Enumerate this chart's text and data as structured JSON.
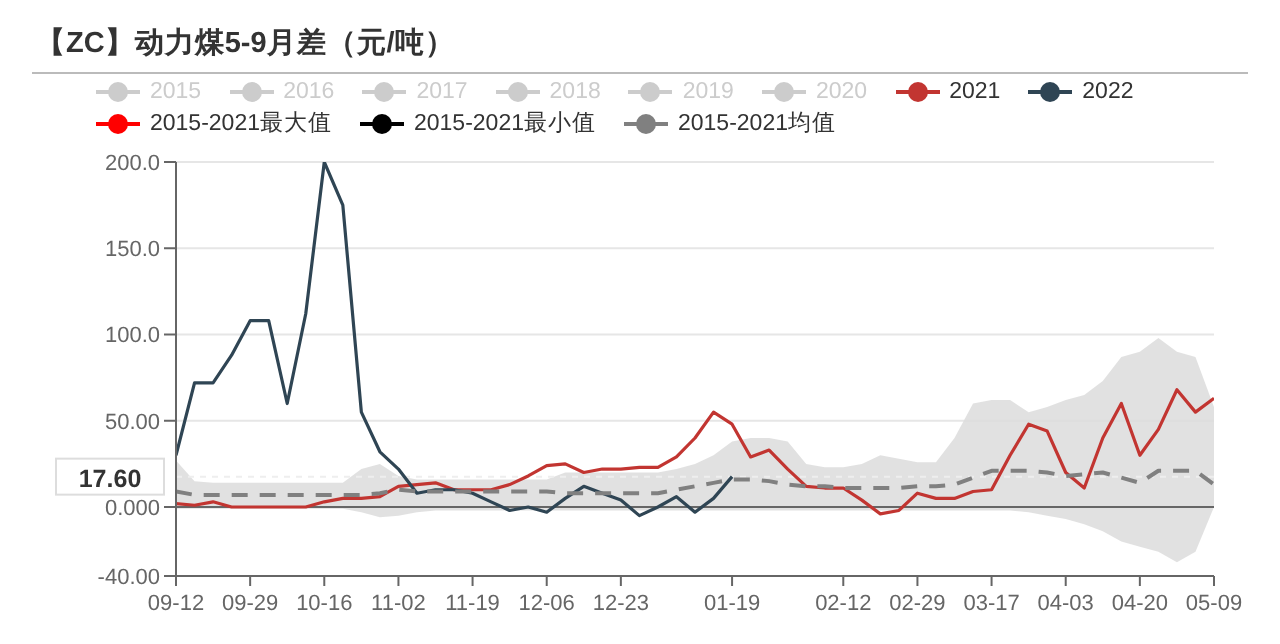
{
  "chart_data": {
    "type": "line",
    "title": "【ZC】动力煤5-9月差（元/吨）",
    "categories": [
      "09-12",
      null,
      null,
      null,
      "09-29",
      null,
      null,
      null,
      "10-16",
      null,
      null,
      null,
      "11-02",
      null,
      null,
      null,
      "11-19",
      null,
      null,
      null,
      "12-06",
      null,
      null,
      null,
      "12-23",
      null,
      null,
      null,
      null,
      null,
      "01-19",
      null,
      null,
      null,
      null,
      null,
      "02-12",
      null,
      null,
      null,
      "02-29",
      null,
      null,
      null,
      "03-17",
      null,
      null,
      null,
      "04-03",
      null,
      null,
      null,
      "04-20",
      null,
      null,
      null,
      "05-09"
    ],
    "series": [
      {
        "name": "2015",
        "color": "#cccccc",
        "values": [
          null,
          null,
          null,
          null,
          null,
          null,
          null,
          null,
          null,
          null,
          null,
          null,
          null,
          null,
          null,
          null,
          null,
          null,
          null,
          null,
          null,
          null,
          null,
          null,
          null,
          null,
          null,
          null,
          null,
          null,
          null,
          null,
          null,
          null,
          null,
          null,
          null,
          null,
          null,
          null,
          null,
          null,
          null,
          null,
          null,
          null,
          null,
          null,
          null,
          null,
          null,
          null,
          null,
          null,
          null,
          null,
          null
        ]
      },
      {
        "name": "2016",
        "color": "#cccccc",
        "values": [
          null,
          null,
          null,
          null,
          null,
          null,
          null,
          null,
          null,
          null,
          null,
          null,
          null,
          null,
          null,
          null,
          null,
          null,
          null,
          null,
          null,
          null,
          null,
          null,
          null,
          null,
          null,
          null,
          null,
          null,
          null,
          null,
          null,
          null,
          null,
          null,
          null,
          null,
          null,
          null,
          null,
          null,
          null,
          null,
          null,
          null,
          null,
          null,
          null,
          null,
          null,
          null,
          null,
          null,
          null,
          null,
          null
        ]
      },
      {
        "name": "2017",
        "color": "#cccccc",
        "values": [
          null,
          null,
          null,
          null,
          null,
          null,
          null,
          null,
          null,
          null,
          null,
          null,
          null,
          null,
          null,
          null,
          null,
          null,
          null,
          null,
          null,
          null,
          null,
          null,
          null,
          null,
          null,
          null,
          null,
          null,
          null,
          null,
          null,
          null,
          null,
          null,
          null,
          null,
          null,
          null,
          null,
          null,
          null,
          null,
          null,
          null,
          null,
          null,
          null,
          null,
          null,
          null,
          null,
          null,
          null,
          null,
          null
        ]
      },
      {
        "name": "2018",
        "color": "#cccccc",
        "values": [
          null,
          null,
          null,
          null,
          null,
          null,
          null,
          null,
          null,
          null,
          null,
          null,
          null,
          null,
          null,
          null,
          null,
          null,
          null,
          null,
          null,
          null,
          null,
          null,
          null,
          null,
          null,
          null,
          null,
          null,
          null,
          null,
          null,
          null,
          null,
          null,
          null,
          null,
          null,
          null,
          null,
          null,
          null,
          null,
          null,
          null,
          null,
          null,
          null,
          null,
          null,
          null,
          null,
          null,
          null,
          null,
          null
        ]
      },
      {
        "name": "2019",
        "color": "#cccccc",
        "values": [
          null,
          null,
          null,
          null,
          null,
          null,
          null,
          null,
          null,
          null,
          null,
          null,
          null,
          null,
          null,
          null,
          null,
          null,
          null,
          null,
          null,
          null,
          null,
          null,
          null,
          null,
          null,
          null,
          null,
          null,
          null,
          null,
          null,
          null,
          null,
          null,
          null,
          null,
          null,
          null,
          null,
          null,
          null,
          null,
          null,
          null,
          null,
          null,
          null,
          null,
          null,
          null,
          null,
          null,
          null,
          null,
          null
        ]
      },
      {
        "name": "2020",
        "color": "#cccccc",
        "values": [
          null,
          null,
          null,
          null,
          null,
          null,
          null,
          null,
          null,
          null,
          null,
          null,
          null,
          null,
          null,
          null,
          null,
          null,
          null,
          null,
          null,
          null,
          null,
          null,
          null,
          null,
          null,
          null,
          null,
          null,
          null,
          null,
          null,
          null,
          null,
          null,
          null,
          null,
          null,
          null,
          null,
          null,
          null,
          null,
          null,
          null,
          null,
          null,
          null,
          null,
          null,
          null,
          null,
          null,
          null,
          null,
          null
        ]
      },
      {
        "name": "2021",
        "color": "#c23531",
        "values": [
          2,
          1,
          3,
          0,
          0,
          0,
          0,
          0,
          3,
          5,
          5,
          6,
          12,
          13,
          14,
          10,
          10,
          10,
          13,
          18,
          24,
          25,
          20,
          22,
          22,
          23,
          23,
          29,
          40,
          55,
          48,
          29,
          33,
          22,
          12,
          11,
          11,
          4,
          -4,
          -2,
          8,
          5,
          5,
          9,
          10,
          30,
          48,
          44,
          20,
          11,
          40,
          60,
          30,
          45,
          68,
          55,
          63
        ]
      },
      {
        "name": "2022",
        "color": "#2f4554",
        "values": [
          30,
          72,
          72,
          88,
          108,
          108,
          60,
          112,
          200,
          175,
          55,
          32,
          22,
          8,
          10,
          10,
          8,
          3,
          -2,
          0,
          -3,
          5,
          12,
          8,
          4,
          -5,
          0,
          6,
          -3,
          5,
          17.6,
          null,
          null,
          null,
          null,
          null,
          null,
          null,
          null,
          null,
          null,
          null,
          null,
          null,
          null,
          null,
          null,
          null,
          null,
          null,
          null,
          null,
          null,
          null,
          null,
          null,
          null
        ]
      },
      {
        "name": "2015-2021最大值",
        "color": "#ff0000",
        "values": [
          null,
          null,
          null,
          null,
          null,
          null,
          null,
          null,
          null,
          null,
          null,
          null,
          null,
          null,
          null,
          null,
          null,
          null,
          null,
          null,
          null,
          null,
          null,
          null,
          null,
          null,
          null,
          null,
          null,
          null,
          null,
          null,
          null,
          null,
          null,
          null,
          null,
          null,
          null,
          null,
          null,
          null,
          null,
          null,
          null,
          null,
          null,
          null,
          null,
          null,
          null,
          null,
          null,
          null,
          null,
          null,
          null
        ]
      },
      {
        "name": "2015-2021最小值",
        "color": "#000000",
        "values": [
          null,
          null,
          null,
          null,
          null,
          null,
          null,
          null,
          null,
          null,
          null,
          null,
          null,
          null,
          null,
          null,
          null,
          null,
          null,
          null,
          null,
          null,
          null,
          null,
          null,
          null,
          null,
          null,
          null,
          null,
          null,
          null,
          null,
          null,
          null,
          null,
          null,
          null,
          null,
          null,
          null,
          null,
          null,
          null,
          null,
          null,
          null,
          null,
          null,
          null,
          null,
          null,
          null,
          null,
          null,
          null,
          null
        ]
      },
      {
        "name": "2015-2021均值",
        "color": "#808080",
        "line_style": "dashed",
        "upper": [
          27,
          15,
          14,
          14,
          14,
          14,
          14,
          14,
          14,
          14,
          22,
          25,
          18,
          16,
          16,
          16,
          16,
          16,
          16,
          16,
          16,
          20,
          20,
          20,
          20,
          20,
          20,
          22,
          25,
          30,
          38,
          40,
          40,
          38,
          25,
          23,
          23,
          25,
          30,
          28,
          26,
          26,
          40,
          60,
          62,
          62,
          55,
          58,
          62,
          65,
          73,
          87,
          90,
          98,
          90,
          87,
          58
        ],
        "lower": [
          -1,
          -1,
          -1,
          -1,
          -1,
          -1,
          -1,
          -1,
          -1,
          -1,
          -3,
          -6,
          -5,
          -3,
          -2,
          -2,
          -2,
          -2,
          -2,
          -2,
          -2,
          -2,
          -2,
          -2,
          -2,
          -2,
          -2,
          -2,
          -2,
          -2,
          -2,
          -2,
          -2,
          -2,
          -2,
          -2,
          -2,
          -2,
          -2,
          -2,
          -2,
          -2,
          -2,
          -2,
          -2,
          -2,
          -3,
          -5,
          -7,
          -10,
          -14,
          -20,
          -23,
          -26,
          -32,
          -26,
          0
        ],
        "values": [
          9,
          7,
          7,
          7,
          7,
          7,
          7,
          7,
          7,
          7,
          7,
          8,
          10,
          9,
          9,
          9,
          9,
          9,
          9,
          9,
          9,
          8,
          8,
          8,
          8,
          8,
          8,
          10,
          12,
          14,
          16,
          16,
          15,
          13,
          12,
          12,
          11,
          11,
          11,
          11,
          12,
          12,
          13,
          17,
          21,
          21,
          21,
          20,
          18,
          19,
          20,
          17,
          14,
          21,
          21,
          21,
          13
        ]
      }
    ],
    "ylim": [
      -40,
      200
    ],
    "yticks": [
      {
        "value": -40,
        "label": "-40.00"
      },
      {
        "value": 0,
        "label": "0.000"
      },
      {
        "value": 50,
        "label": "50.00"
      },
      {
        "value": 100,
        "label": "100.0"
      },
      {
        "value": 150,
        "label": "150.0"
      },
      {
        "value": 200,
        "label": "200.0"
      }
    ],
    "grid": "y",
    "legend": "top",
    "marker": "none",
    "ref_lines": [
      {
        "axis": "y",
        "value": 17.6,
        "label": "17.60"
      }
    ]
  }
}
